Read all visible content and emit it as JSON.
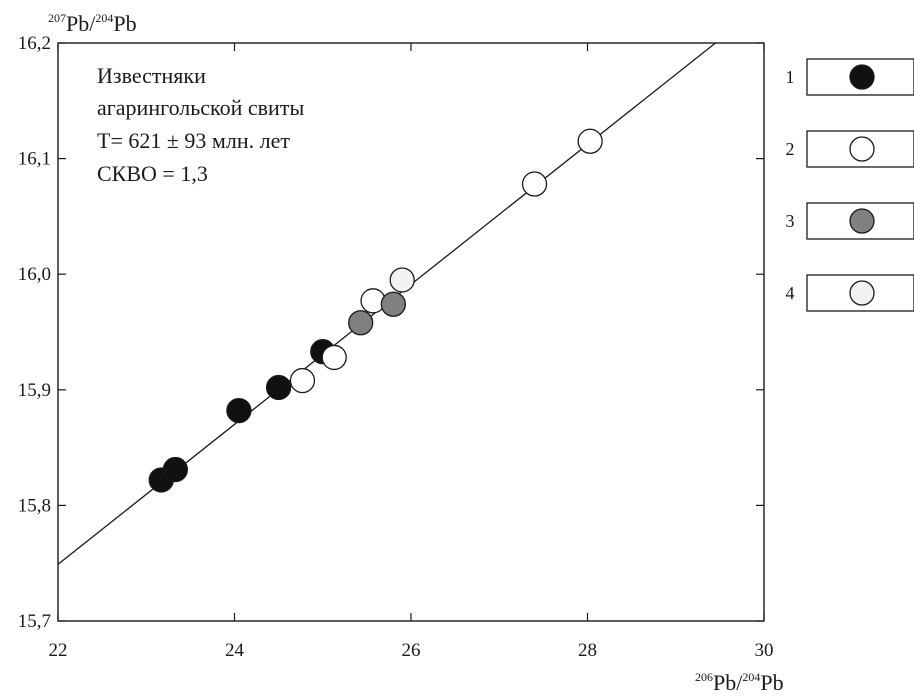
{
  "chart_data": {
    "type": "scatter",
    "xlabel": {
      "sup1": "206",
      "base1": "Pb/",
      "sup2": "204",
      "base2": "Pb"
    },
    "ylabel": {
      "sup1": "207",
      "base1": "Pb/",
      "sup2": "204",
      "base2": "Pb"
    },
    "xlim": [
      22,
      30
    ],
    "ylim": [
      15.7,
      16.2
    ],
    "xticks": [
      22,
      24,
      26,
      28,
      30
    ],
    "xtick_labels": [
      "22",
      "24",
      "26",
      "28",
      "30"
    ],
    "yticks": [
      15.7,
      15.8,
      15.9,
      16.0,
      16.1,
      16.2
    ],
    "ytick_labels": [
      "15,7",
      "15,8",
      "15,9",
      "16,0",
      "16,1",
      "16,2"
    ],
    "grid": false,
    "annotation": [
      "Известняки",
      "агарингольской свиты",
      "T= 621 ± 93 млн. лет",
      "СКВО = 1,3"
    ],
    "regression_line": {
      "x": [
        22,
        29.45
      ],
      "y": [
        15.749,
        16.2
      ]
    },
    "series": [
      {
        "name": "1",
        "fill": "#111111",
        "points": [
          [
            23.17,
            15.822
          ],
          [
            23.33,
            15.831
          ],
          [
            24.05,
            15.882
          ],
          [
            24.5,
            15.902
          ],
          [
            25.0,
            15.933
          ]
        ]
      },
      {
        "name": "2",
        "fill": "#ffffff",
        "points": [
          [
            24.77,
            15.908
          ],
          [
            25.13,
            15.928
          ],
          [
            25.57,
            15.977
          ],
          [
            27.4,
            16.078
          ],
          [
            28.03,
            16.115
          ]
        ]
      },
      {
        "name": "3",
        "fill": "#808080",
        "points": [
          [
            25.43,
            15.958
          ],
          [
            25.8,
            15.974
          ]
        ]
      },
      {
        "name": "4",
        "fill": "#f2f2f2",
        "points": [
          [
            25.9,
            15.995
          ]
        ]
      }
    ],
    "legend": {
      "placement": "right",
      "entries": [
        "1",
        "2",
        "3",
        "4"
      ]
    }
  }
}
